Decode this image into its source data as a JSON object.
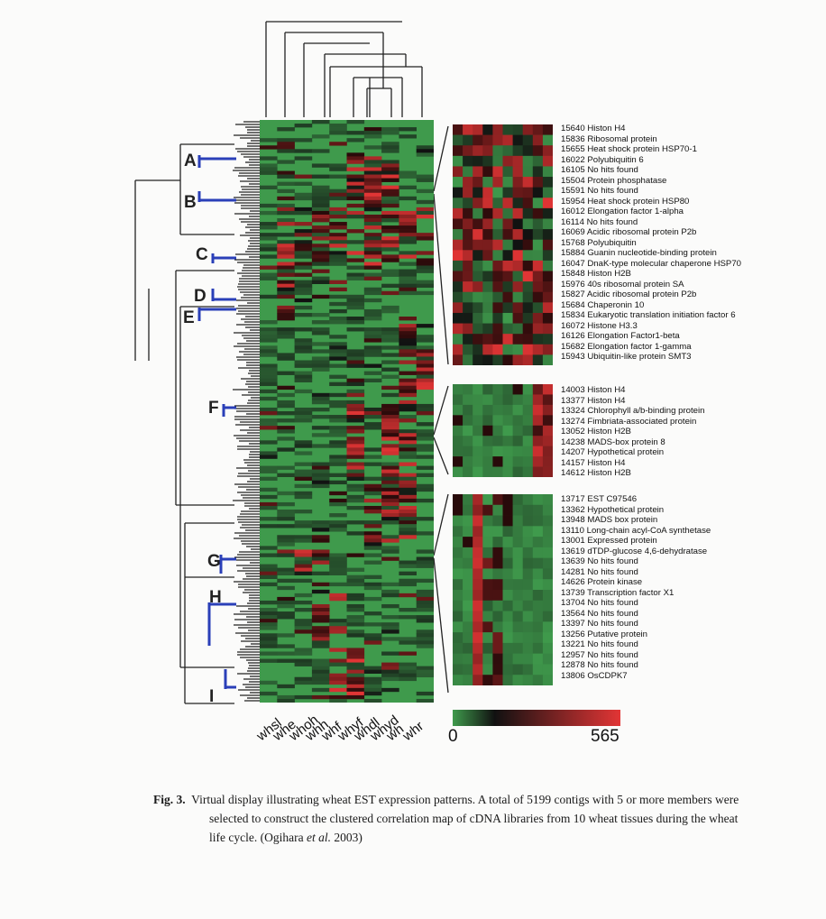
{
  "figure": {
    "cluster_labels": [
      "A",
      "B",
      "C",
      "D",
      "E",
      "F",
      "G",
      "H",
      "I"
    ],
    "libraries": [
      "whsl",
      "whe",
      "whoh",
      "whh",
      "whf",
      "whyf",
      "whdl",
      "whyd",
      "wh",
      "whr"
    ],
    "scale": {
      "min": "0",
      "max": "565",
      "colors": [
        "#3f9a4c",
        "#111111",
        "#e23535"
      ]
    },
    "gene_groups": [
      {
        "items": [
          "15640 Histon H4",
          "15836 Ribosomal protein",
          "15655 Heat shock protein HSP70-1",
          "16022 Polyubiquitin 6",
          "16105 No hits found",
          "15504 Protein phosphatase",
          "15591 No hits found",
          "15954 Heat shock protein HSP80",
          "16012 Elongation factor 1-alpha",
          "16114 No hits found",
          "16069 Acidic ribosomal protein P2b",
          "15768 Polyubiquitin",
          "15884 Guanin nucleotide-binding protein",
          "16047 DnaK-type molecular chaperone HSP70",
          "15848 Histon H2B",
          "15976 40s ribosomal protein SA",
          "15827 Acidic ribosomal protein P2b",
          "15684 Chaperonin 10",
          "15834 Eukaryotic translation initiation factor 6",
          "16072 Histone H3.3",
          "16126 Elongation Factor1-beta",
          "15682 Elongation factor 1-gamma",
          "15943 Ubiquitin-like protein SMT3"
        ]
      },
      {
        "items": [
          "14003 Histon H4",
          "13377 Histon H4",
          "13324 Chlorophyll a/b-binding protein",
          "13274 Fimbriata-associated protein",
          "13052 Histon H2B",
          "14238 MADS-box protein 8",
          "14207 Hypothetical protein",
          "14157 Histon H4",
          "14612 Histon H2B"
        ]
      },
      {
        "items": [
          "13717 EST C97546",
          "13362 Hypothetical protein",
          "13948 MADS box protein",
          "13110 Long-chain acyl-CoA synthetase",
          "13001 Expressed protein",
          "13619 dTDP-glucose 4,6-dehydratase",
          "13639 No hits found",
          "14281 No hits found",
          "14626 Protein kinase",
          "13739 Transcription factor X1",
          "13704 No hits found",
          "13564 No hits found",
          "13397 No hits found",
          "13256 Putative protein",
          "13221 No hits found",
          "12957 No hits found",
          "12878 No hits found",
          "13806 OsCDPK7"
        ]
      }
    ]
  },
  "caption": {
    "label": "Fig. 3.",
    "text": "Virtual display illustrating wheat EST expression patterns. A total of 5199 contigs with 5 or more members were selected to construct the clustered correlation map of cDNA libraries from 10 wheat tissues during the wheat life cycle. (Ogihara ",
    "citation_author": "et al.",
    "citation_year": " 2003)"
  }
}
